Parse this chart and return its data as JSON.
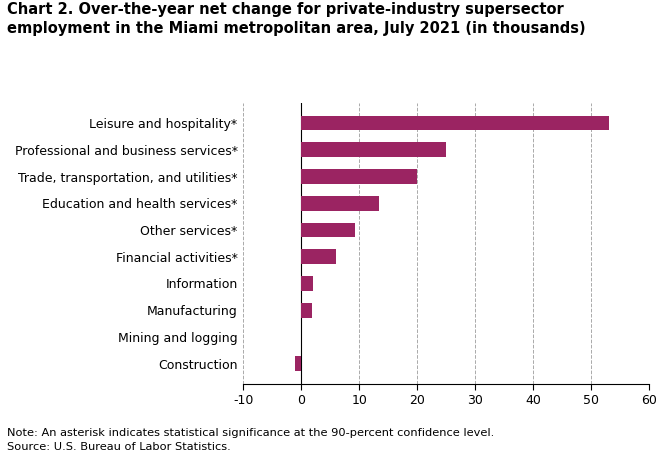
{
  "title_line1": "Chart 2. Over-the-year net change for private-industry supersector",
  "title_line2": "employment in the Miami metropolitan area, July 2021 (in thousands)",
  "categories": [
    "Construction",
    "Mining and logging",
    "Manufacturing",
    "Information",
    "Financial activities*",
    "Other services*",
    "Education and health services*",
    "Trade, transportation, and utilities*",
    "Professional and business services*",
    "Leisure and hospitality*"
  ],
  "values": [
    -1.0,
    0.0,
    1.8,
    2.0,
    6.0,
    9.3,
    13.5,
    20.0,
    25.0,
    53.0
  ],
  "bar_color": "#9B2462",
  "xlim": [
    -10,
    60
  ],
  "xticks": [
    -10,
    0,
    10,
    20,
    30,
    40,
    50,
    60
  ],
  "note": "Note: An asterisk indicates statistical significance at the 90-percent confidence level.",
  "source": "Source: U.S. Bureau of Labor Statistics.",
  "title_fontsize": 10.5,
  "label_fontsize": 9.0,
  "tick_fontsize": 9.0,
  "note_fontsize": 8.2
}
